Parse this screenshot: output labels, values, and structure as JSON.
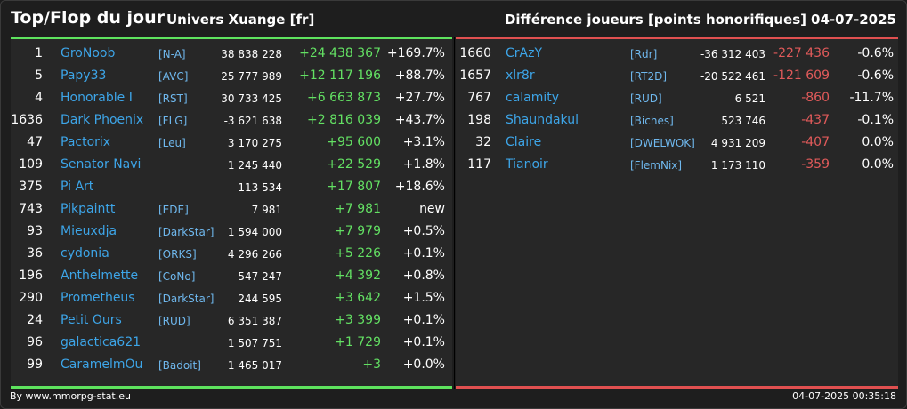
{
  "header": {
    "title": "Top/Flop du jour",
    "universe": "Univers Xuange [fr]",
    "metric": "Différence joueurs [points honorifiques]",
    "date": "04-07-2025"
  },
  "colors": {
    "positive": "#63e063",
    "negative": "#e05a5a",
    "name": "#3da5e8",
    "top_bar": "#5ee35e",
    "flop_bar": "#e05050"
  },
  "top": [
    {
      "rank": "1",
      "name": "GroNoob",
      "alliance": "[N-A]",
      "score": "38 838 228",
      "diff": "+24 438 367",
      "pct": "+169.7%"
    },
    {
      "rank": "5",
      "name": "Papy33",
      "alliance": "[AVC]",
      "score": "25 777 989",
      "diff": "+12 117 196",
      "pct": "+88.7%"
    },
    {
      "rank": "4",
      "name": "Honorable I",
      "alliance": "[RST]",
      "score": "30 733 425",
      "diff": "+6 663 873",
      "pct": "+27.7%"
    },
    {
      "rank": "1636",
      "name": "Dark Phoenix",
      "alliance": "[FLG]",
      "score": "-3 621 638",
      "diff": "+2 816 039",
      "pct": "+43.7%"
    },
    {
      "rank": "47",
      "name": "Pactorix",
      "alliance": "[Leu]",
      "score": "3 170 275",
      "diff": "+95 600",
      "pct": "+3.1%"
    },
    {
      "rank": "109",
      "name": "Senator Navi",
      "alliance": "",
      "score": "1 245 440",
      "diff": "+22 529",
      "pct": "+1.8%"
    },
    {
      "rank": "375",
      "name": "Pi Art",
      "alliance": "",
      "score": "113 534",
      "diff": "+17 807",
      "pct": "+18.6%"
    },
    {
      "rank": "743",
      "name": "Pikpaintt",
      "alliance": "[EDE]",
      "score": "7 981",
      "diff": "+7 981",
      "pct": "new"
    },
    {
      "rank": "93",
      "name": "Mieuxdja",
      "alliance": "[DarkStar]",
      "score": "1 594 000",
      "diff": "+7 979",
      "pct": "+0.5%"
    },
    {
      "rank": "36",
      "name": "cydonia",
      "alliance": "[ORKS]",
      "score": "4 296 266",
      "diff": "+5 226",
      "pct": "+0.1%"
    },
    {
      "rank": "196",
      "name": "Anthelmette",
      "alliance": "[CoNo]",
      "score": "547 247",
      "diff": "+4 392",
      "pct": "+0.8%"
    },
    {
      "rank": "290",
      "name": "Prometheus",
      "alliance": "[DarkStar]",
      "score": "244 595",
      "diff": "+3 642",
      "pct": "+1.5%"
    },
    {
      "rank": "24",
      "name": "Petit Ours",
      "alliance": "[RUD]",
      "score": "6 351 387",
      "diff": "+3 399",
      "pct": "+0.1%"
    },
    {
      "rank": "96",
      "name": "galactica621",
      "alliance": "",
      "score": "1 507 751",
      "diff": "+1 729",
      "pct": "+0.1%"
    },
    {
      "rank": "99",
      "name": "CaramelmOu",
      "alliance": "[Badoit]",
      "score": "1 465 017",
      "diff": "+3",
      "pct": "+0.0%"
    }
  ],
  "flop": [
    {
      "rank": "1660",
      "name": "CrAzY",
      "alliance": "[Rdr]",
      "score": "-36 312 403",
      "diff": "-227 436",
      "pct": "-0.6%"
    },
    {
      "rank": "1657",
      "name": "xlr8r",
      "alliance": "[RT2D]",
      "score": "-20 522 461",
      "diff": "-121 609",
      "pct": "-0.6%"
    },
    {
      "rank": "767",
      "name": "calamity",
      "alliance": "[RUD]",
      "score": "6 521",
      "diff": "-860",
      "pct": "-11.7%"
    },
    {
      "rank": "198",
      "name": "Shaundakul",
      "alliance": "[Biches]",
      "score": "523 746",
      "diff": "-437",
      "pct": "-0.1%"
    },
    {
      "rank": "32",
      "name": "Claire",
      "alliance": "[DWELWOK]",
      "score": "4 931 209",
      "diff": "-407",
      "pct": "0.0%"
    },
    {
      "rank": "117",
      "name": "Tianoir",
      "alliance": "[FlemNix]",
      "score": "1 173 110",
      "diff": "-359",
      "pct": "0.0%"
    }
  ],
  "footer": {
    "source": "By www.mmorpg-stat.eu",
    "timestamp": "04-07-2025 00:35:18"
  }
}
